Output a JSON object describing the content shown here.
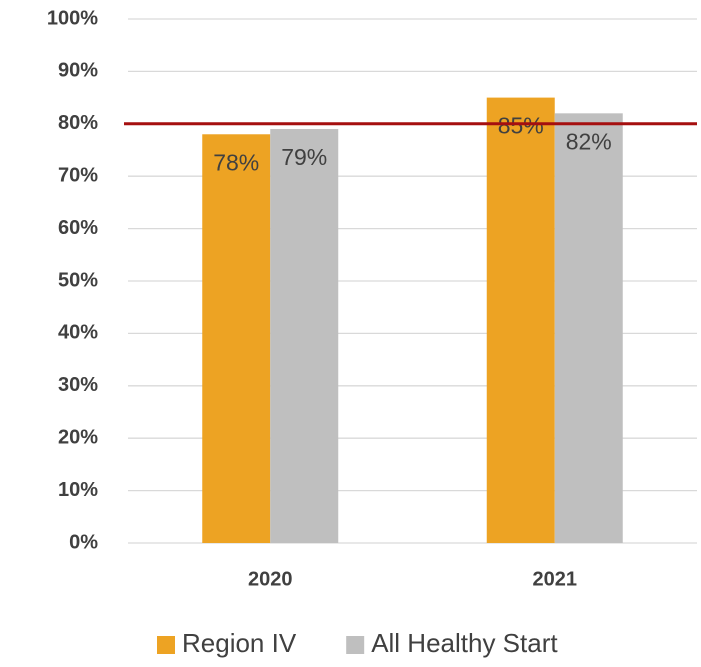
{
  "chart_data": {
    "type": "bar",
    "categories": [
      "2020",
      "2021"
    ],
    "series": [
      {
        "name": "Region IV",
        "color": "#eda323",
        "values": [
          78,
          85
        ],
        "value_labels": [
          "78%",
          "85%"
        ]
      },
      {
        "name": "All Healthy Start",
        "color": "#bfbfbf",
        "values": [
          79,
          82
        ],
        "value_labels": [
          "79%",
          "82%"
        ]
      }
    ],
    "ylim": [
      0,
      100
    ],
    "yticks": [
      {
        "value": 0,
        "label": "0%"
      },
      {
        "value": 10,
        "label": "10%"
      },
      {
        "value": 20,
        "label": "20%"
      },
      {
        "value": 30,
        "label": "30%"
      },
      {
        "value": 40,
        "label": "40%"
      },
      {
        "value": 50,
        "label": "50%"
      },
      {
        "value": 60,
        "label": "60%"
      },
      {
        "value": 70,
        "label": "70%"
      },
      {
        "value": 80,
        "label": "80%"
      },
      {
        "value": 90,
        "label": "90%"
      },
      {
        "value": 100,
        "label": "100%"
      }
    ],
    "grid": true,
    "reference_line": {
      "value": 80,
      "color": "#a50f0f"
    },
    "legend": "bottom"
  }
}
